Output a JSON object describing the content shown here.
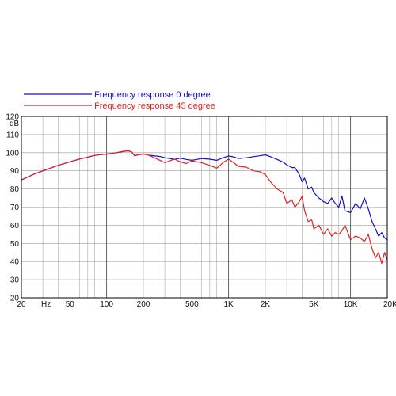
{
  "chart_data": {
    "type": "line",
    "title": "",
    "xlabel": "Hz",
    "ylabel": "dB",
    "x_scale": "log",
    "xlim": [
      20,
      20000
    ],
    "ylim": [
      20,
      120
    ],
    "grid": true,
    "legend_position": "top-left",
    "y_ticks": [
      20,
      30,
      40,
      50,
      60,
      70,
      80,
      90,
      100,
      110,
      120
    ],
    "x_ticks": [
      {
        "value": 20,
        "label": "20"
      },
      {
        "value": 50,
        "label": "50"
      },
      {
        "value": 100,
        "label": "100"
      },
      {
        "value": 200,
        "label": "200"
      },
      {
        "value": 500,
        "label": "500"
      },
      {
        "value": 1000,
        "label": "1K"
      },
      {
        "value": 2000,
        "label": "2K"
      },
      {
        "value": 5000,
        "label": "5K"
      },
      {
        "value": 10000,
        "label": "10K"
      },
      {
        "value": 20000,
        "label": "20K"
      }
    ],
    "series": [
      {
        "name": "Frequency response 0 degree",
        "color": "#1010c8",
        "x": [
          20,
          25,
          30,
          40,
          50,
          60,
          70,
          80,
          90,
          100,
          120,
          140,
          150,
          160,
          170,
          180,
          200,
          220,
          250,
          280,
          300,
          330,
          360,
          400,
          450,
          500,
          550,
          600,
          700,
          800,
          900,
          1000,
          1100,
          1200,
          1400,
          1600,
          1800,
          2000,
          2200,
          2500,
          2800,
          3000,
          3300,
          3500,
          3800,
          4000,
          4200,
          4500,
          4800,
          5000,
          5500,
          6000,
          6500,
          7000,
          7500,
          8000,
          8500,
          9000,
          10000,
          11000,
          12000,
          13000,
          14000,
          15000,
          16000,
          17000,
          18000,
          19000,
          20000
        ],
        "y": [
          85,
          88,
          90,
          93,
          95,
          96.5,
          97.5,
          98.5,
          99,
          99.2,
          100,
          100.8,
          101,
          100.5,
          98.3,
          98.8,
          99.3,
          98.7,
          98.2,
          97.8,
          97.2,
          96.8,
          96.3,
          97,
          96.3,
          95.8,
          96.3,
          96.8,
          96.4,
          95.8,
          97.2,
          98.2,
          97.7,
          96.8,
          97.2,
          97.8,
          98.3,
          98.8,
          97.8,
          96.3,
          94.8,
          93.3,
          91.8,
          91.8,
          88,
          84,
          86,
          80,
          81,
          78,
          75,
          73,
          72,
          75,
          72,
          70,
          76,
          68,
          67,
          72,
          69,
          75,
          69,
          62,
          58,
          54,
          56,
          53,
          52
        ]
      },
      {
        "name": "Frequency response 45 degree",
        "color": "#e02020",
        "x": [
          20,
          25,
          30,
          40,
          50,
          60,
          70,
          80,
          90,
          100,
          120,
          140,
          150,
          160,
          170,
          180,
          200,
          220,
          250,
          280,
          300,
          330,
          360,
          400,
          450,
          500,
          550,
          600,
          700,
          800,
          900,
          1000,
          1100,
          1200,
          1400,
          1600,
          1800,
          2000,
          2200,
          2500,
          2800,
          3000,
          3300,
          3500,
          3800,
          4000,
          4200,
          4500,
          4800,
          5000,
          5500,
          6000,
          6500,
          7000,
          7500,
          8000,
          8500,
          9000,
          10000,
          11000,
          12000,
          13000,
          14000,
          15000,
          16000,
          17000,
          18000,
          19000,
          20000
        ],
        "y": [
          85,
          88,
          90,
          93,
          95,
          96.5,
          97.5,
          98.5,
          99,
          99.2,
          100,
          100.8,
          101,
          100.5,
          98.3,
          98.8,
          99.3,
          98.7,
          97,
          95.5,
          94.5,
          95.5,
          96.5,
          95,
          94,
          95.5,
          95,
          94.5,
          93,
          91.5,
          94.5,
          96.5,
          94.5,
          92.5,
          92,
          90,
          89.5,
          88,
          84,
          80,
          78,
          72,
          74,
          70,
          73,
          76,
          68,
          62,
          63,
          58,
          60,
          55,
          58,
          54,
          56,
          55,
          57,
          60,
          52,
          54,
          53,
          51,
          55,
          47,
          42,
          45,
          39,
          45,
          41
        ]
      }
    ]
  }
}
